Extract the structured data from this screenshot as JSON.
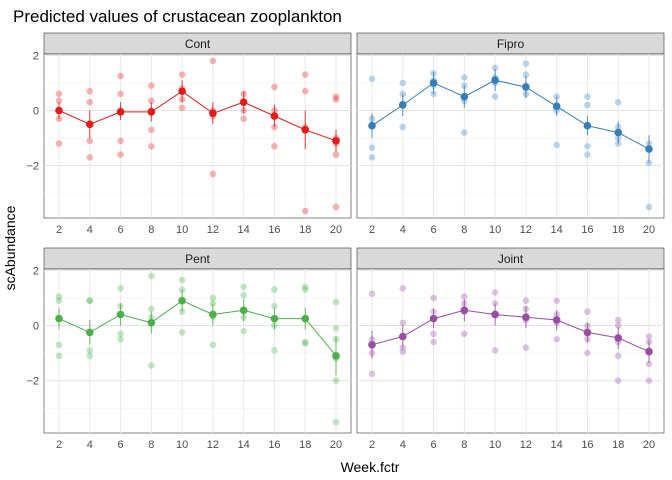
{
  "chart_data": {
    "type": "scatter",
    "title": "Predicted values of crustacean zooplankton",
    "xlabel": "Week.fctr",
    "ylabel": "scAbundance",
    "categories": [
      "2",
      "4",
      "6",
      "8",
      "10",
      "12",
      "14",
      "16",
      "18",
      "20"
    ],
    "yticks": [
      2,
      0,
      -2
    ],
    "ylim": [
      -3.9,
      2.05
    ],
    "grid": true,
    "panels": [
      {
        "name": "Cont",
        "color": "#e41a1c",
        "predicted": [
          0.0,
          -0.5,
          -0.05,
          -0.05,
          0.7,
          -0.1,
          0.3,
          -0.2,
          -0.7,
          -1.1
        ],
        "ci_low": [
          -0.3,
          -1.0,
          -0.35,
          -0.4,
          0.3,
          -0.5,
          -0.1,
          -0.6,
          -1.4,
          -1.5
        ],
        "ci_high": [
          0.3,
          0.0,
          0.3,
          0.3,
          1.1,
          0.3,
          0.7,
          0.2,
          0.0,
          -0.7
        ],
        "observed": [
          [
            0.6,
            0.35,
            0.0,
            -0.3,
            -1.2
          ],
          [
            0.7,
            0.3,
            -0.5,
            -1.1,
            -1.7
          ],
          [
            1.25,
            0.6,
            0.0,
            -1.1,
            -1.6
          ],
          [
            0.9,
            0.35,
            0.0,
            -0.7,
            -1.3
          ],
          [
            1.3,
            0.8,
            0.4,
            0.1
          ],
          [
            1.8,
            0.0,
            -0.2,
            -2.3
          ],
          [
            0.6,
            0.3,
            0.0,
            -0.3
          ],
          [
            0.85,
            0.0,
            -0.6,
            -1.3
          ],
          [
            1.3,
            0.7,
            -0.6,
            -3.65
          ],
          [
            0.5,
            0.4,
            -1.0,
            -1.2,
            -1.6,
            -3.5
          ]
        ]
      },
      {
        "name": "Fipro",
        "color": "#377eb8",
        "predicted": [
          -0.55,
          0.2,
          1.0,
          0.5,
          1.1,
          0.85,
          0.15,
          -0.55,
          -0.8,
          -1.4
        ],
        "ci_low": [
          -1.0,
          -0.2,
          0.6,
          0.1,
          0.7,
          0.45,
          -0.2,
          -0.9,
          -1.2,
          -1.9
        ],
        "ci_high": [
          -0.1,
          0.6,
          1.4,
          0.9,
          1.5,
          1.25,
          0.5,
          -0.2,
          -0.4,
          -0.9
        ],
        "observed": [
          [
            1.15,
            -0.3,
            -1.35,
            -1.7
          ],
          [
            1.0,
            0.6,
            0.25,
            -0.6
          ],
          [
            1.35,
            1.1,
            0.9,
            0.6
          ],
          [
            1.2,
            0.9,
            0.35,
            -0.8
          ],
          [
            1.55,
            1.2,
            1.0,
            0.5
          ],
          [
            1.7,
            1.3,
            0.9,
            0.6
          ],
          [
            0.5,
            0.2,
            0.0,
            -1.25
          ],
          [
            0.5,
            0.2,
            -1.3,
            -1.6
          ],
          [
            0.3,
            -0.6,
            -1.0,
            -1.2
          ],
          [
            -1.2,
            -1.9,
            -3.5
          ]
        ]
      },
      {
        "name": "Pent",
        "color": "#4daf4a",
        "predicted": [
          0.25,
          -0.25,
          0.4,
          0.1,
          0.9,
          0.4,
          0.55,
          0.25,
          0.25,
          -1.1
        ],
        "ci_low": [
          -0.15,
          -0.7,
          0.0,
          -0.3,
          0.5,
          0.0,
          0.15,
          -0.15,
          -0.15,
          -1.8
        ],
        "ci_high": [
          0.65,
          0.2,
          0.8,
          0.5,
          1.3,
          0.8,
          0.95,
          0.65,
          0.65,
          -0.4
        ],
        "observed": [
          [
            1.05,
            0.9,
            -0.7,
            -1.1
          ],
          [
            0.9,
            0.9,
            -0.9,
            -1.1
          ],
          [
            1.35,
            0.7,
            -0.3,
            -0.5
          ],
          [
            1.8,
            0.6,
            0.3,
            -1.45
          ],
          [
            1.65,
            1.3,
            0.5,
            -0.25
          ],
          [
            1.0,
            0.8,
            0.3,
            -0.7
          ],
          [
            1.4,
            1.1,
            0.3,
            -0.2
          ],
          [
            1.3,
            0.7,
            0.0,
            -0.9
          ],
          [
            1.4,
            1.3,
            -0.6,
            -0.65
          ],
          [
            0.85,
            -0.1,
            -0.5,
            -1.2,
            -2.0,
            -3.5
          ]
        ]
      },
      {
        "name": "Joint",
        "color": "#984ea3",
        "predicted": [
          -0.7,
          -0.4,
          0.25,
          0.55,
          0.4,
          0.3,
          0.2,
          -0.25,
          -0.45,
          -0.95
        ],
        "ci_low": [
          -1.2,
          -0.8,
          -0.1,
          0.15,
          0.0,
          -0.1,
          -0.15,
          -0.6,
          -0.85,
          -1.35
        ],
        "ci_high": [
          -0.2,
          0.0,
          0.6,
          0.95,
          0.8,
          0.7,
          0.55,
          0.1,
          -0.05,
          -0.55
        ],
        "observed": [
          [
            1.15,
            -0.5,
            -1.0,
            -1.75
          ],
          [
            1.35,
            0.1,
            -0.8,
            -0.95
          ],
          [
            1.0,
            0.5,
            -0.3,
            -0.6
          ],
          [
            1.05,
            0.8,
            0.5,
            -0.3
          ],
          [
            1.2,
            0.8,
            0.4,
            -0.9
          ],
          [
            0.9,
            0.6,
            0.2,
            -0.8
          ],
          [
            0.9,
            0.4,
            0.1,
            -0.5
          ],
          [
            0.5,
            0.0,
            -0.5,
            -1.0
          ],
          [
            0.2,
            0.0,
            -0.6,
            -1.1,
            -2.0
          ],
          [
            -0.4,
            -0.6,
            -0.9,
            -1.4,
            -2.0
          ]
        ]
      }
    ]
  }
}
